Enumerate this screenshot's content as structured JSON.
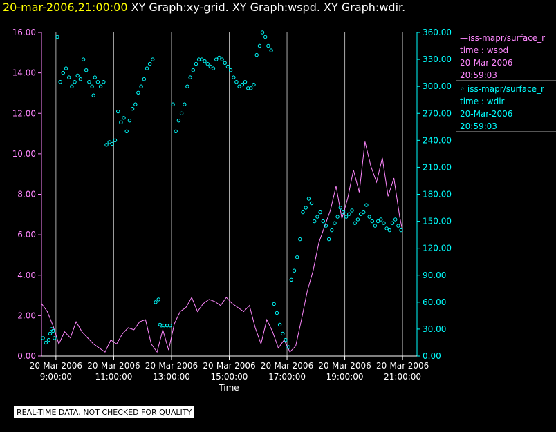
{
  "header": {
    "timestamp": "20-mar-2006,21:00:00",
    "graphs": "XY Graph:xy-grid.  XY Graph:wspd.  XY Graph:wdir."
  },
  "legend": {
    "wspd": {
      "name": "—iss-mapr/surface_r",
      "field": "time : wspd",
      "date": "20-Mar-2006",
      "time": "20:59:03"
    },
    "wdir": {
      "name": "◦ iss-mapr/surface_r",
      "field": "time : wdir",
      "date": "20-Mar-2006",
      "time": "20:59:03"
    }
  },
  "note": "REAL-TIME DATA, NOT CHECKED FOR QUALITY",
  "colors": {
    "wspd": "#ff88ff",
    "wdir": "#00ffff",
    "grid": "#aaaaaa",
    "axis": "#ffffff"
  },
  "chart_data": {
    "type": "line",
    "xlabel": "Time",
    "x_range_hours": [
      8.5,
      21.5
    ],
    "x_ticks": [
      {
        "h": 9,
        "date": "20-Mar-2006",
        "time": "9:00:00"
      },
      {
        "h": 11,
        "date": "20-Mar-2006",
        "time": "11:00:00"
      },
      {
        "h": 13,
        "date": "20-Mar-2006",
        "time": "13:00:00"
      },
      {
        "h": 15,
        "date": "20-Mar-2006",
        "time": "15:00:00"
      },
      {
        "h": 17,
        "date": "20-Mar-2006",
        "time": "17:00:00"
      },
      {
        "h": 19,
        "date": "20-Mar-2006",
        "time": "19:00:00"
      },
      {
        "h": 21,
        "date": "20-Mar-2006",
        "time": "21:00:00"
      }
    ],
    "y_left": {
      "range": [
        0,
        16
      ],
      "ticks": [
        "0.00",
        "2.00",
        "4.00",
        "6.00",
        "8.00",
        "10.00",
        "12.00",
        "14.00",
        "16.00"
      ]
    },
    "y_right": {
      "range": [
        0,
        360
      ],
      "ticks": [
        "0.00",
        "30.00",
        "60.00",
        "90.00",
        "120.00",
        "150.00",
        "180.00",
        "210.00",
        "240.00",
        "270.00",
        "300.00",
        "330.00",
        "360.00"
      ]
    },
    "series": [
      {
        "key": "wspd",
        "axis": "left",
        "style": "line",
        "x": [
          8.5,
          8.7,
          8.9,
          9.1,
          9.3,
          9.5,
          9.7,
          9.9,
          10.1,
          10.3,
          10.5,
          10.7,
          10.9,
          11.1,
          11.3,
          11.5,
          11.7,
          11.9,
          12.1,
          12.3,
          12.5,
          12.7,
          12.9,
          13.1,
          13.3,
          13.5,
          13.7,
          13.9,
          14.1,
          14.3,
          14.5,
          14.7,
          14.9,
          15.1,
          15.3,
          15.5,
          15.7,
          15.9,
          16.1,
          16.3,
          16.5,
          16.7,
          16.9,
          17.1,
          17.3,
          17.5,
          17.7,
          17.9,
          18.1,
          18.3,
          18.5,
          18.7,
          18.9,
          19.1,
          19.3,
          19.5,
          19.7,
          19.9,
          20.1,
          20.3,
          20.5,
          20.7,
          20.9,
          21.0
        ],
        "y": [
          2.6,
          2.2,
          1.5,
          0.6,
          1.2,
          0.9,
          1.7,
          1.2,
          0.9,
          0.6,
          0.4,
          0.2,
          0.8,
          0.6,
          1.1,
          1.4,
          1.3,
          1.7,
          1.8,
          0.6,
          0.2,
          1.3,
          0.3,
          1.6,
          2.2,
          2.4,
          2.9,
          2.2,
          2.6,
          2.8,
          2.7,
          2.5,
          2.9,
          2.6,
          2.4,
          2.2,
          2.5,
          1.4,
          0.6,
          1.8,
          1.2,
          0.4,
          0.8,
          0.2,
          0.5,
          1.8,
          3.2,
          4.2,
          5.6,
          6.4,
          7.2,
          8.4,
          6.8,
          7.8,
          9.2,
          8.1,
          10.6,
          9.4,
          8.6,
          9.8,
          7.9,
          8.8,
          6.9,
          6.2
        ]
      },
      {
        "key": "wdir",
        "axis": "right",
        "style": "scatter",
        "x": [
          8.55,
          8.65,
          8.75,
          8.8,
          8.85,
          8.9,
          8.95,
          9.05,
          9.15,
          9.25,
          9.35,
          9.45,
          9.55,
          9.65,
          9.75,
          9.85,
          9.95,
          10.05,
          10.15,
          10.25,
          10.3,
          10.35,
          10.45,
          10.55,
          10.65,
          10.75,
          10.85,
          10.95,
          11.05,
          11.15,
          11.25,
          11.35,
          11.45,
          11.55,
          11.65,
          11.75,
          11.85,
          11.95,
          12.05,
          12.15,
          12.25,
          12.35,
          12.45,
          12.55,
          12.6,
          12.65,
          12.75,
          12.85,
          12.95,
          13.05,
          13.15,
          13.25,
          13.35,
          13.45,
          13.55,
          13.65,
          13.75,
          13.85,
          13.95,
          14.05,
          14.15,
          14.25,
          14.35,
          14.45,
          14.55,
          14.65,
          14.75,
          14.85,
          14.95,
          15.05,
          15.15,
          15.25,
          15.35,
          15.45,
          15.55,
          15.65,
          15.75,
          15.85,
          15.95,
          16.05,
          16.15,
          16.25,
          16.35,
          16.45,
          16.55,
          16.65,
          16.75,
          16.85,
          16.95,
          17.05,
          17.15,
          17.25,
          17.35,
          17.45,
          17.55,
          17.65,
          17.75,
          17.85,
          17.95,
          18.05,
          18.15,
          18.25,
          18.35,
          18.45,
          18.55,
          18.65,
          18.75,
          18.85,
          18.95,
          19.05,
          19.15,
          19.25,
          19.35,
          19.45,
          19.55,
          19.65,
          19.75,
          19.85,
          19.95,
          20.05,
          20.15,
          20.25,
          20.35,
          20.45,
          20.55,
          20.65,
          20.75,
          20.85,
          20.95
        ],
        "y": [
          20,
          15,
          18,
          25,
          30,
          28,
          20,
          355,
          305,
          315,
          320,
          310,
          300,
          305,
          312,
          308,
          330,
          318,
          305,
          300,
          290,
          310,
          305,
          300,
          305,
          235,
          238,
          236,
          240,
          272,
          260,
          265,
          250,
          262,
          275,
          280,
          293,
          300,
          308,
          320,
          325,
          330,
          60,
          63,
          35,
          34,
          34,
          34,
          34,
          280,
          250,
          262,
          270,
          280,
          300,
          310,
          318,
          325,
          330,
          330,
          328,
          325,
          322,
          320,
          330,
          332,
          330,
          326,
          322,
          318,
          310,
          305,
          300,
          302,
          305,
          298,
          298,
          302,
          335,
          345,
          360,
          355,
          345,
          340,
          58,
          48,
          35,
          25,
          18,
          10,
          85,
          95,
          110,
          130,
          160,
          165,
          175,
          170,
          150,
          155,
          160,
          150,
          145,
          130,
          140,
          148,
          155,
          165,
          160,
          155,
          158,
          162,
          148,
          152,
          158,
          160,
          168,
          155,
          150,
          145,
          150,
          152,
          148,
          142,
          140,
          148,
          152,
          145,
          140
        ]
      }
    ]
  }
}
